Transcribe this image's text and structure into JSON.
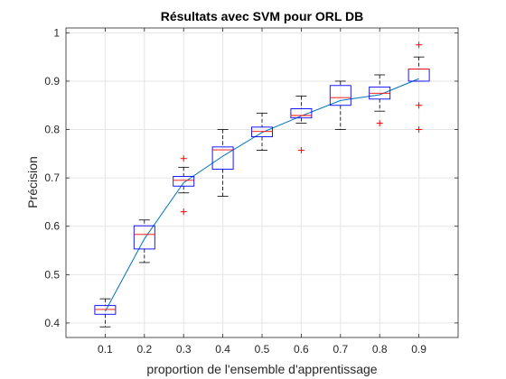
{
  "chart_data": {
    "type": "box",
    "title": "Résultats avec SVM pour ORL DB",
    "xlabel": "proportion de l'ensemble d'apprentissage",
    "ylabel": "Précision",
    "ylim": [
      0.37,
      1.01
    ],
    "x_ticks": [
      "0.1",
      "0.2",
      "0.3",
      "0.4",
      "0.5",
      "0.6",
      "0.7",
      "0.8",
      "0.9"
    ],
    "y_ticks": [
      "0.4",
      "0.5",
      "0.6",
      "0.7",
      "0.8",
      "0.9",
      "1"
    ],
    "grid": true,
    "boxes": [
      {
        "x": "0.1",
        "whisker_low": 0.392,
        "q1": 0.418,
        "median": 0.428,
        "q3": 0.436,
        "whisker_high": 0.45,
        "outliers": []
      },
      {
        "x": "0.2",
        "whisker_low": 0.525,
        "q1": 0.553,
        "median": 0.583,
        "q3": 0.601,
        "whisker_high": 0.613,
        "outliers": []
      },
      {
        "x": "0.3",
        "whisker_low": 0.669,
        "q1": 0.683,
        "median": 0.695,
        "q3": 0.703,
        "whisker_high": 0.722,
        "outliers": [
          0.74,
          0.63
        ]
      },
      {
        "x": "0.4",
        "whisker_low": 0.662,
        "q1": 0.718,
        "median": 0.758,
        "q3": 0.764,
        "whisker_high": 0.8,
        "outliers": []
      },
      {
        "x": "0.5",
        "whisker_low": 0.757,
        "q1": 0.785,
        "median": 0.796,
        "q3": 0.805,
        "whisker_high": 0.834,
        "outliers": []
      },
      {
        "x": "0.6",
        "whisker_low": 0.813,
        "q1": 0.824,
        "median": 0.829,
        "q3": 0.843,
        "whisker_high": 0.869,
        "outliers": [
          0.757
        ]
      },
      {
        "x": "0.7",
        "whisker_low": 0.8,
        "q1": 0.85,
        "median": 0.866,
        "q3": 0.891,
        "whisker_high": 0.9,
        "outliers": []
      },
      {
        "x": "0.8",
        "whisker_low": 0.838,
        "q1": 0.863,
        "median": 0.875,
        "q3": 0.888,
        "whisker_high": 0.913,
        "outliers": [
          0.813
        ]
      },
      {
        "x": "0.9",
        "whisker_low": 0.9,
        "q1": 0.9,
        "median": 0.925,
        "q3": 0.925,
        "whisker_high": 0.95,
        "outliers": [
          0.975,
          0.85,
          0.8
        ]
      }
    ],
    "mean_line": {
      "x": [
        "0.1",
        "0.2",
        "0.3",
        "0.4",
        "0.5",
        "0.6",
        "0.7",
        "0.8",
        "0.9"
      ],
      "values": [
        0.424,
        0.574,
        0.69,
        0.745,
        0.794,
        0.828,
        0.86,
        0.872,
        0.905
      ]
    },
    "colors": {
      "box": "#0000ff",
      "median": "#ff0000",
      "outlier": "#ff0000",
      "whisker": "#000000",
      "line": "#0072bd",
      "grid": "#e5e5e5",
      "axis": "#262626"
    }
  }
}
